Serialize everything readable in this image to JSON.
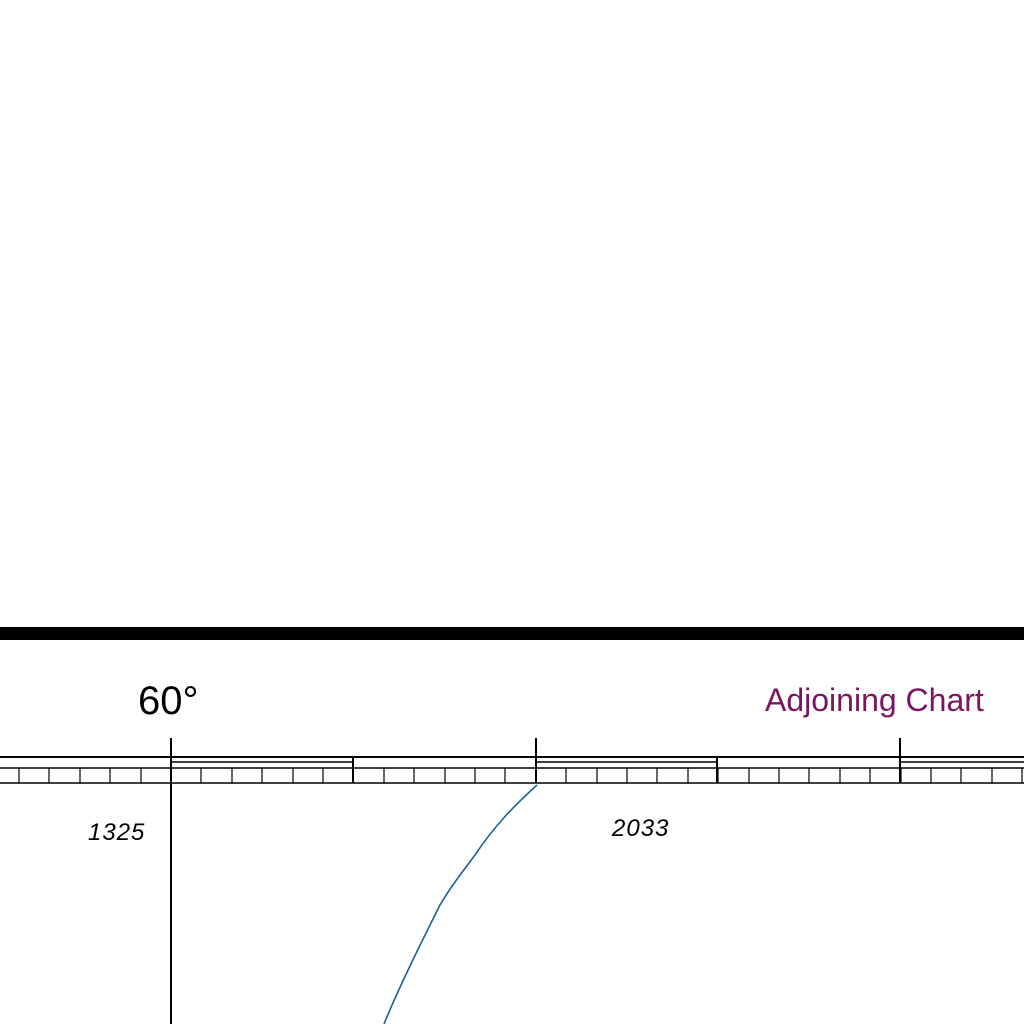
{
  "map": {
    "latitude_label": "60°",
    "adjoining_label": "Adjoining Chart",
    "chart_numbers": [
      {
        "label": "1325"
      },
      {
        "label": "2033"
      }
    ]
  },
  "colors": {
    "background": "#ffffff",
    "frame": "#000000",
    "adjoining_text": "#7a1560",
    "coastline": "#1f5f99"
  }
}
